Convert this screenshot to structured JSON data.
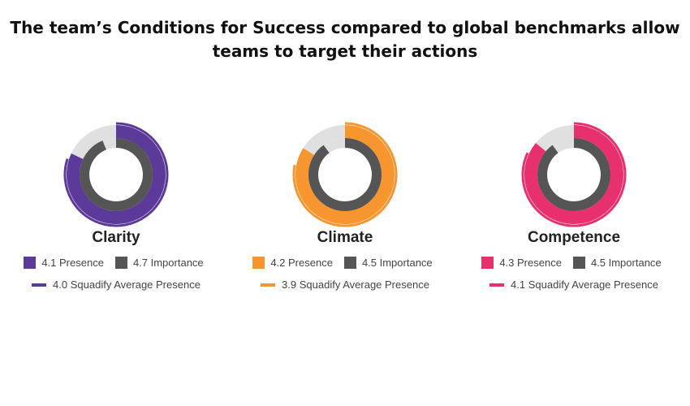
{
  "title": "The team’s Conditions for Success compared to global benchmarks allow teams to target their actions",
  "chart_data": {
    "type": "radial-bar",
    "scale_max": 5,
    "colors": {
      "importance": "#555555",
      "track": "#e0e0e0"
    },
    "charts": [
      {
        "name": "Clarity",
        "color": "#5c3a9a",
        "presence": 4.1,
        "importance": 4.7,
        "average": 4.0,
        "presence_label": "4.1 Presence",
        "importance_label": "4.7 Importance",
        "average_label": "4.0 Squadify Average Presence"
      },
      {
        "name": "Climate",
        "color": "#f7962f",
        "presence": 4.2,
        "importance": 4.5,
        "average": 3.9,
        "presence_label": "4.2 Presence",
        "importance_label": "4.5 Importance",
        "average_label": "3.9 Squadify Average Presence"
      },
      {
        "name": "Competence",
        "color": "#e9306f",
        "presence": 4.3,
        "importance": 4.5,
        "average": 4.1,
        "presence_label": "4.3 Presence",
        "importance_label": "4.5 Importance",
        "average_label": "4.1 Squadify Average Presence"
      }
    ]
  }
}
